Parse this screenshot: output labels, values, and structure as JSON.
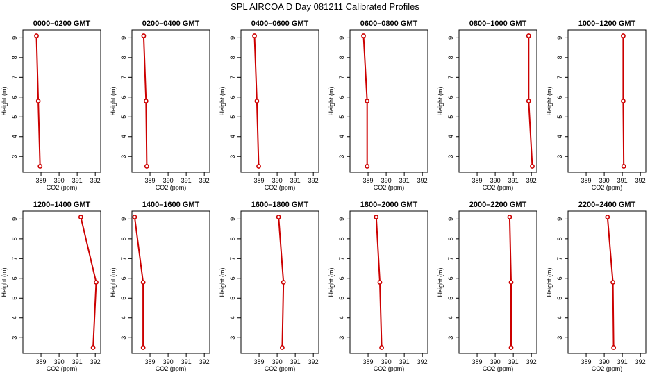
{
  "figure": {
    "title": "SPL AIRCOA D  Day 081211  Calibrated Profiles"
  },
  "chart_data": [
    {
      "type": "line",
      "title": "0000–0200 GMT",
      "xlabel": "CO2 (ppm)",
      "ylabel": "Height (m)",
      "xlim": [
        388.0,
        392.3
      ],
      "ylim": [
        2.2,
        9.4
      ],
      "xticks": [
        389,
        390,
        391,
        392
      ],
      "yticks": [
        3,
        4,
        5,
        6,
        7,
        8,
        9
      ],
      "series": [
        {
          "x": [
            388.75,
            388.85,
            388.95
          ],
          "y": [
            9.1,
            5.8,
            2.5
          ]
        }
      ],
      "color": "#cc0000",
      "grid": false
    },
    {
      "type": "line",
      "title": "0200–0400 GMT",
      "xlabel": "CO2 (ppm)",
      "ylabel": "Height (m)",
      "xlim": [
        388.0,
        392.3
      ],
      "ylim": [
        2.2,
        9.4
      ],
      "xticks": [
        389,
        390,
        391,
        392
      ],
      "yticks": [
        3,
        4,
        5,
        6,
        7,
        8,
        9
      ],
      "series": [
        {
          "x": [
            388.65,
            388.78,
            388.82
          ],
          "y": [
            9.1,
            5.8,
            2.5
          ]
        }
      ],
      "color": "#cc0000",
      "grid": false
    },
    {
      "type": "line",
      "title": "0400–0600 GMT",
      "xlabel": "CO2 (ppm)",
      "ylabel": "Height (m)",
      "xlim": [
        388.0,
        392.3
      ],
      "ylim": [
        2.2,
        9.4
      ],
      "xticks": [
        389,
        390,
        391,
        392
      ],
      "yticks": [
        3,
        4,
        5,
        6,
        7,
        8,
        9
      ],
      "series": [
        {
          "x": [
            388.75,
            388.88,
            388.98
          ],
          "y": [
            9.1,
            5.8,
            2.5
          ]
        }
      ],
      "color": "#cc0000",
      "grid": false
    },
    {
      "type": "line",
      "title": "0600–0800 GMT",
      "xlabel": "CO2 (ppm)",
      "ylabel": "Height (m)",
      "xlim": [
        388.0,
        392.3
      ],
      "ylim": [
        2.2,
        9.4
      ],
      "xticks": [
        389,
        390,
        391,
        392
      ],
      "yticks": [
        3,
        4,
        5,
        6,
        7,
        8,
        9
      ],
      "series": [
        {
          "x": [
            388.75,
            388.95,
            388.95
          ],
          "y": [
            9.1,
            5.8,
            2.5
          ]
        }
      ],
      "color": "#cc0000",
      "grid": false
    },
    {
      "type": "line",
      "title": "0800–1000 GMT",
      "xlabel": "CO2 (ppm)",
      "ylabel": "Height (m)",
      "xlim": [
        388.0,
        392.3
      ],
      "ylim": [
        2.2,
        9.4
      ],
      "xticks": [
        389,
        390,
        391,
        392
      ],
      "yticks": [
        3,
        4,
        5,
        6,
        7,
        8,
        9
      ],
      "series": [
        {
          "x": [
            391.85,
            391.85,
            392.05
          ],
          "y": [
            9.1,
            5.8,
            2.5
          ]
        }
      ],
      "color": "#cc0000",
      "grid": false
    },
    {
      "type": "line",
      "title": "1000–1200 GMT",
      "xlabel": "CO2 (ppm)",
      "ylabel": "Height (m)",
      "xlim": [
        388.0,
        392.3
      ],
      "ylim": [
        2.2,
        9.4
      ],
      "xticks": [
        389,
        390,
        391,
        392
      ],
      "yticks": [
        3,
        4,
        5,
        6,
        7,
        8,
        9
      ],
      "series": [
        {
          "x": [
            391.05,
            391.05,
            391.08
          ],
          "y": [
            9.1,
            5.8,
            2.5
          ]
        }
      ],
      "color": "#cc0000",
      "grid": false
    },
    {
      "type": "line",
      "title": "1200–1400 GMT",
      "xlabel": "CO2 (ppm)",
      "ylabel": "Height (m)",
      "xlim": [
        388.0,
        392.3
      ],
      "ylim": [
        2.2,
        9.4
      ],
      "xticks": [
        389,
        390,
        391,
        392
      ],
      "yticks": [
        3,
        4,
        5,
        6,
        7,
        8,
        9
      ],
      "series": [
        {
          "x": [
            391.2,
            392.05,
            391.88
          ],
          "y": [
            9.1,
            5.8,
            2.5
          ]
        }
      ],
      "color": "#cc0000",
      "grid": false
    },
    {
      "type": "line",
      "title": "1400–1600 GMT",
      "xlabel": "CO2 (ppm)",
      "ylabel": "Height (m)",
      "xlim": [
        388.0,
        392.3
      ],
      "ylim": [
        2.2,
        9.4
      ],
      "xticks": [
        389,
        390,
        391,
        392
      ],
      "yticks": [
        3,
        4,
        5,
        6,
        7,
        8,
        9
      ],
      "series": [
        {
          "x": [
            388.15,
            388.62,
            388.62
          ],
          "y": [
            9.1,
            5.8,
            2.5
          ]
        }
      ],
      "color": "#cc0000",
      "grid": false
    },
    {
      "type": "line",
      "title": "1600–1800 GMT",
      "xlabel": "CO2 (ppm)",
      "ylabel": "Height (m)",
      "xlim": [
        388.0,
        392.3
      ],
      "ylim": [
        2.2,
        9.4
      ],
      "xticks": [
        389,
        390,
        391,
        392
      ],
      "yticks": [
        3,
        4,
        5,
        6,
        7,
        8,
        9
      ],
      "series": [
        {
          "x": [
            390.08,
            390.35,
            390.28
          ],
          "y": [
            9.1,
            5.8,
            2.5
          ]
        }
      ],
      "color": "#cc0000",
      "grid": false
    },
    {
      "type": "line",
      "title": "1800–2000 GMT",
      "xlabel": "CO2 (ppm)",
      "ylabel": "Height (m)",
      "xlim": [
        388.0,
        392.3
      ],
      "ylim": [
        2.2,
        9.4
      ],
      "xticks": [
        389,
        390,
        391,
        392
      ],
      "yticks": [
        3,
        4,
        5,
        6,
        7,
        8,
        9
      ],
      "series": [
        {
          "x": [
            389.45,
            389.65,
            389.75
          ],
          "y": [
            9.1,
            5.8,
            2.5
          ]
        }
      ],
      "color": "#cc0000",
      "grid": false
    },
    {
      "type": "line",
      "title": "2000–2200 GMT",
      "xlabel": "CO2 (ppm)",
      "ylabel": "Height (m)",
      "xlim": [
        388.0,
        392.3
      ],
      "ylim": [
        2.2,
        9.4
      ],
      "xticks": [
        389,
        390,
        391,
        392
      ],
      "yticks": [
        3,
        4,
        5,
        6,
        7,
        8,
        9
      ],
      "series": [
        {
          "x": [
            390.8,
            390.88,
            390.88
          ],
          "y": [
            9.1,
            5.8,
            2.5
          ]
        }
      ],
      "color": "#cc0000",
      "grid": false
    },
    {
      "type": "line",
      "title": "2200–2400 GMT",
      "xlabel": "CO2 (ppm)",
      "ylabel": "Height (m)",
      "xlim": [
        388.0,
        392.3
      ],
      "ylim": [
        2.2,
        9.4
      ],
      "xticks": [
        389,
        390,
        391,
        392
      ],
      "yticks": [
        3,
        4,
        5,
        6,
        7,
        8,
        9
      ],
      "series": [
        {
          "x": [
            390.18,
            390.48,
            390.52
          ],
          "y": [
            9.1,
            5.8,
            2.5
          ]
        }
      ],
      "color": "#cc0000",
      "grid": false
    }
  ]
}
